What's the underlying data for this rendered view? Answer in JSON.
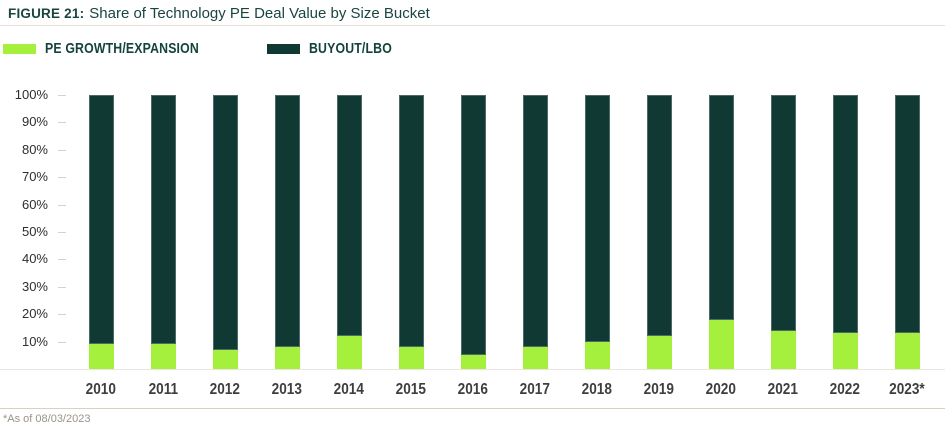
{
  "figure": {
    "label": "FIGURE 21:",
    "title": "Share of Technology PE Deal Value by Size Bucket",
    "footnote": "*As of 08/03/2023"
  },
  "legend": [
    {
      "label": "PE GROWTH/EXPANSION",
      "color": "#A4F03C"
    },
    {
      "label": "BUYOUT/LBO",
      "color": "#103934"
    }
  ],
  "colors": {
    "growth_green": "#A4F03C",
    "buyout_teal": "#103934",
    "title_teal": "#1A453E"
  },
  "chart_data": {
    "type": "bar",
    "stacked": true,
    "title": "Share of Technology PE Deal Value by Size Bucket",
    "xlabel": "",
    "ylabel": "",
    "ylim": [
      0,
      100
    ],
    "y_ticks": [
      "100%",
      "90%",
      "80%",
      "70%",
      "60%",
      "50%",
      "40%",
      "30%",
      "20%",
      "10%"
    ],
    "grid": false,
    "legend_position": "top",
    "categories": [
      "2010",
      "2011",
      "2012",
      "2013",
      "2014",
      "2015",
      "2016",
      "2017",
      "2018",
      "2019",
      "2020",
      "2021",
      "2022",
      "2023*"
    ],
    "series": [
      {
        "name": "PE GROWTH/EXPANSION",
        "color": "#A4F03C",
        "values": [
          9,
          9,
          7,
          8,
          12,
          8,
          5,
          8,
          10,
          12,
          18,
          14,
          13,
          13
        ]
      },
      {
        "name": "BUYOUT/LBO",
        "color": "#103934",
        "values": [
          91,
          91,
          93,
          92,
          88,
          92,
          95,
          92,
          90,
          88,
          82,
          86,
          87,
          87
        ]
      }
    ]
  }
}
